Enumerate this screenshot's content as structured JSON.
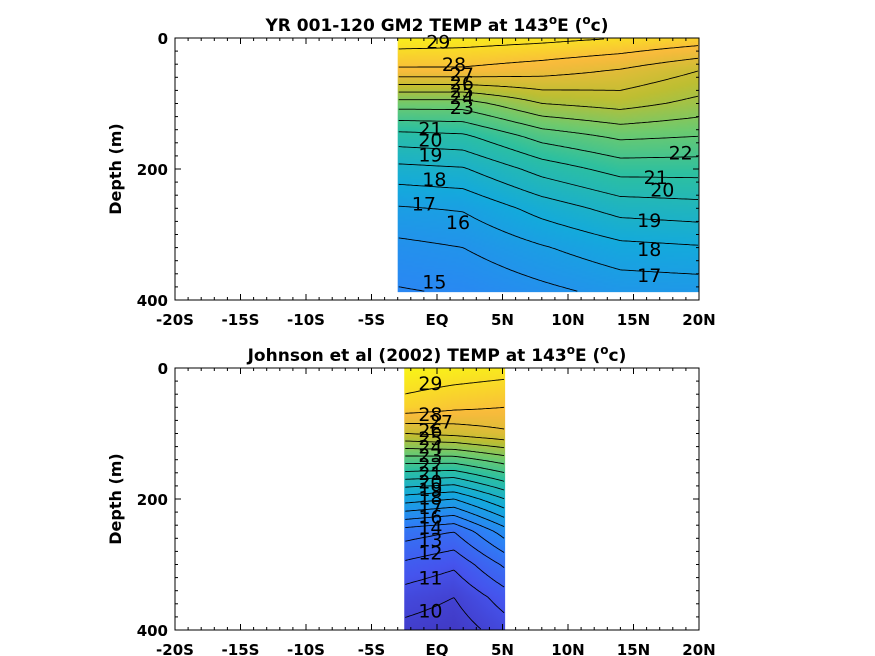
{
  "chart_data": [
    {
      "type": "heatmap",
      "subtype": "filled-contour",
      "title_parts": {
        "main": "YR 001-120 GM2 TEMP at 143",
        "sup": "o",
        "mid": "E (",
        "sup2": "o",
        "end": "c)"
      },
      "ylabel": "Depth (m)",
      "xlim": [
        -20,
        20
      ],
      "ylim": [
        0,
        400
      ],
      "y_reversed": true,
      "x_ticks": [
        -20,
        -15,
        -10,
        -5,
        0,
        5,
        10,
        15,
        20
      ],
      "x_tick_labels": [
        "-20S",
        "-15S",
        "-10S",
        "-5S",
        "EQ",
        "5N",
        "10N",
        "15N",
        "20N"
      ],
      "y_ticks": [
        0,
        200,
        400
      ],
      "y_tick_labels": [
        "0",
        "200",
        "400"
      ],
      "data_extent": {
        "x": [
          -3.0,
          20.0
        ],
        "y": [
          0,
          388
        ]
      },
      "colormap_range": [
        8,
        30
      ],
      "contour_levels": [
        15,
        16,
        17,
        18,
        19,
        20,
        21,
        22,
        23,
        24,
        25,
        26,
        27,
        28,
        29
      ],
      "profiles": [
        {
          "x": -3.0,
          "depths": [
            0,
            50,
            100,
            150,
            200,
            260,
            320,
            388
          ],
          "temps": [
            29.6,
            27.8,
            23.5,
            20.6,
            18.7,
            16.9,
            15.7,
            14.9
          ]
        },
        {
          "x": 2.0,
          "depths": [
            0,
            50,
            100,
            150,
            200,
            260,
            320,
            388
          ],
          "temps": [
            29.5,
            27.8,
            23.5,
            20.8,
            18.9,
            17.1,
            16.0,
            15.1
          ]
        },
        {
          "x": 8.0,
          "depths": [
            0,
            50,
            100,
            150,
            200,
            260,
            320,
            388
          ],
          "temps": [
            29.3,
            27.4,
            25.0,
            22.4,
            20.4,
            18.4,
            16.9,
            15.7
          ]
        },
        {
          "x": 14.0,
          "depths": [
            0,
            50,
            100,
            150,
            200,
            260,
            320,
            388
          ],
          "temps": [
            29.0,
            26.9,
            25.4,
            23.2,
            21.4,
            19.4,
            17.7,
            16.3
          ]
        },
        {
          "x": 20.0,
          "depths": [
            0,
            50,
            100,
            150,
            200,
            260,
            320,
            388
          ],
          "temps": [
            28.6,
            26.0,
            24.7,
            23.0,
            21.4,
            19.6,
            17.9,
            16.4
          ]
        }
      ],
      "contour_labels": [
        {
          "text": "29",
          "x": 0.1,
          "y": 5
        },
        {
          "text": "28",
          "x": 1.3,
          "y": 40
        },
        {
          "text": "27",
          "x": 1.9,
          "y": 55
        },
        {
          "text": "26",
          "x": 1.9,
          "y": 68
        },
        {
          "text": "25",
          "x": 1.9,
          "y": 80
        },
        {
          "text": "24",
          "x": 1.9,
          "y": 90
        },
        {
          "text": "23",
          "x": 1.9,
          "y": 105
        },
        {
          "text": "21",
          "x": -0.5,
          "y": 138
        },
        {
          "text": "20",
          "x": -0.5,
          "y": 155
        },
        {
          "text": "19",
          "x": -0.5,
          "y": 178
        },
        {
          "text": "18",
          "x": -0.2,
          "y": 215
        },
        {
          "text": "17",
          "x": -1.0,
          "y": 253
        },
        {
          "text": "16",
          "x": 1.6,
          "y": 281
        },
        {
          "text": "15",
          "x": -0.2,
          "y": 372
        },
        {
          "text": "22",
          "x": 18.6,
          "y": 175
        },
        {
          "text": "21",
          "x": 16.7,
          "y": 212
        },
        {
          "text": "20",
          "x": 17.2,
          "y": 231
        },
        {
          "text": "19",
          "x": 16.2,
          "y": 278
        },
        {
          "text": "18",
          "x": 16.2,
          "y": 322
        },
        {
          "text": "17",
          "x": 16.2,
          "y": 362
        }
      ]
    },
    {
      "type": "heatmap",
      "subtype": "filled-contour",
      "title_parts": {
        "main": "Johnson et al (2002) TEMP at 143",
        "sup": "o",
        "mid": "E (",
        "sup2": "o",
        "end": "c)"
      },
      "ylabel": "Depth (m)",
      "xlim": [
        -20,
        20
      ],
      "ylim": [
        0,
        400
      ],
      "y_reversed": true,
      "x_ticks": [
        -20,
        -15,
        -10,
        -5,
        0,
        5,
        10,
        15,
        20
      ],
      "x_tick_labels": [
        "-20S",
        "-15S",
        "-10S",
        "-5S",
        "EQ",
        "5N",
        "10N",
        "15N",
        "20N"
      ],
      "y_ticks": [
        0,
        200,
        400
      ],
      "y_tick_labels": [
        "0",
        "200",
        "400"
      ],
      "data_extent": {
        "x": [
          -2.5,
          5.2
        ],
        "y": [
          0,
          400
        ]
      },
      "colormap_range": [
        8,
        30
      ],
      "contour_levels": [
        10,
        11,
        12,
        13,
        14,
        15,
        16,
        17,
        18,
        19,
        20,
        21,
        22,
        23,
        24,
        25,
        26,
        27,
        28,
        29
      ],
      "profiles": [
        {
          "x": -2.5,
          "depths": [
            0,
            60,
            100,
            140,
            200,
            250,
            300,
            350,
            400
          ],
          "temps": [
            29.8,
            28.6,
            26.0,
            22.5,
            17.5,
            13.5,
            11.8,
            10.5,
            9.7
          ]
        },
        {
          "x": 1.3,
          "depths": [
            0,
            60,
            100,
            140,
            200,
            250,
            300,
            350,
            400
          ],
          "temps": [
            29.6,
            28.2,
            26.3,
            22.5,
            17.0,
            13.0,
            11.2,
            10.0,
            9.4
          ]
        },
        {
          "x": 5.2,
          "depths": [
            0,
            60,
            100,
            140,
            200,
            250,
            300,
            350,
            400
          ],
          "temps": [
            29.4,
            28.0,
            26.8,
            23.5,
            19.0,
            15.5,
            13.2,
            11.5,
            10.5
          ]
        }
      ],
      "contour_labels": [
        {
          "text": "29",
          "x": -0.5,
          "y": 23
        },
        {
          "text": "28",
          "x": -0.5,
          "y": 70
        },
        {
          "text": "27",
          "x": 0.3,
          "y": 82
        },
        {
          "text": "26",
          "x": -0.5,
          "y": 95
        },
        {
          "text": "25",
          "x": -0.5,
          "y": 107
        },
        {
          "text": "24",
          "x": -0.5,
          "y": 120
        },
        {
          "text": "23",
          "x": -0.5,
          "y": 133
        },
        {
          "text": "22",
          "x": -0.5,
          "y": 147
        },
        {
          "text": "21",
          "x": -0.5,
          "y": 160
        },
        {
          "text": "20",
          "x": -0.5,
          "y": 173
        },
        {
          "text": "19",
          "x": -0.5,
          "y": 185
        },
        {
          "text": "18",
          "x": -0.5,
          "y": 198
        },
        {
          "text": "17",
          "x": -0.5,
          "y": 212
        },
        {
          "text": "16",
          "x": -0.5,
          "y": 227
        },
        {
          "text": "14",
          "x": -0.5,
          "y": 243
        },
        {
          "text": "13",
          "x": -0.5,
          "y": 262
        },
        {
          "text": "12",
          "x": -0.5,
          "y": 282
        },
        {
          "text": "11",
          "x": -0.5,
          "y": 320
        },
        {
          "text": "10",
          "x": -0.5,
          "y": 370
        }
      ]
    }
  ]
}
